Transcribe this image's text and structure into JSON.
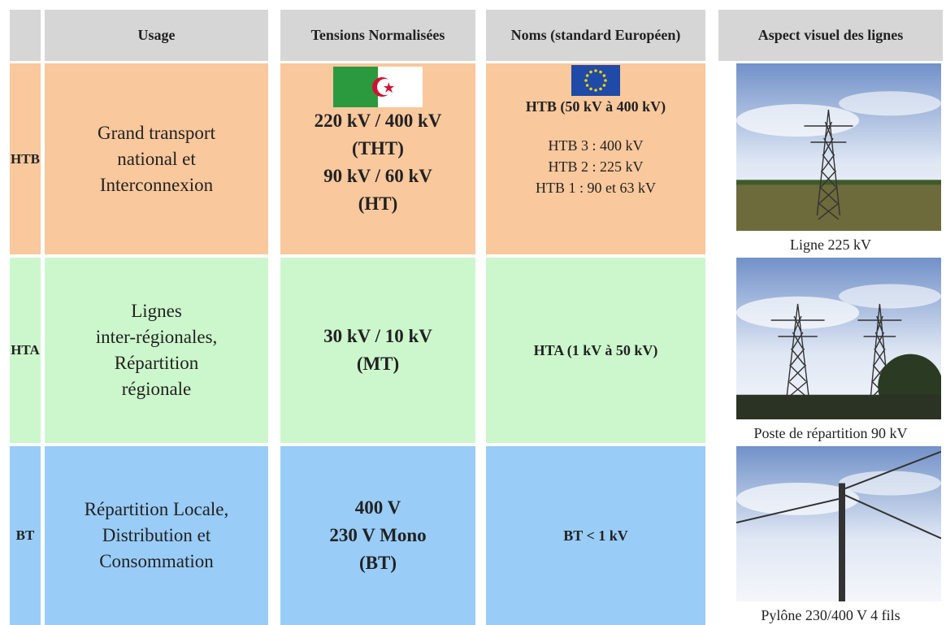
{
  "header": {
    "usage": "Usage",
    "tensions": "Tensions Normalisées",
    "noms": "Noms (standard Européen)",
    "aspect": "Aspect visuel des lignes"
  },
  "rows": [
    {
      "code": "HTB",
      "usage": [
        "Grand transport",
        "national  et",
        "Interconnexion"
      ],
      "tensions": [
        "220 kV / 400 kV",
        "(THT)",
        "90 kV / 60 kV",
        "(HT)"
      ],
      "noms": {
        "title": "HTB  (50 kV à 400 kV)",
        "details": [
          "HTB 3 : 400 kV",
          "HTB 2 : 225 kV",
          "HTB 1 : 90 et 63 kV"
        ]
      },
      "caption": "Ligne 225 kV"
    },
    {
      "code": "HTA",
      "usage": [
        "Lignes",
        "inter-régionales,",
        "Répartition",
        "régionale"
      ],
      "tensions": [
        "30 kV / 10 kV",
        "(MT)"
      ],
      "noms": {
        "title": "HTA  (1 kV à 50 kV)"
      },
      "caption": "Poste de répartition 90 kV"
    },
    {
      "code": "BT",
      "usage": [
        "Répartition Locale,",
        "Distribution et",
        "Consommation"
      ],
      "tensions": [
        "400 V",
        "230 V Mono",
        "(BT)"
      ],
      "noms": {
        "title": "BT < 1 kV"
      },
      "caption": "Pylône 230/400 V 4 fils"
    }
  ]
}
